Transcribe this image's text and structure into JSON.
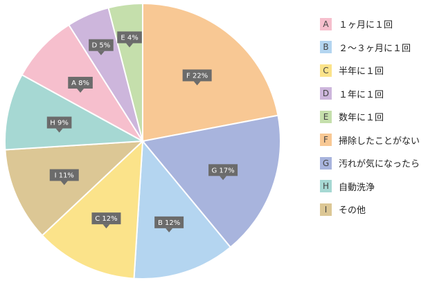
{
  "chart_data": {
    "type": "pie",
    "start": "top",
    "direction": "clockwise",
    "order": [
      "F",
      "G",
      "B",
      "C",
      "I",
      "H",
      "A",
      "D",
      "E"
    ],
    "slices": [
      {
        "key": "A",
        "name": "１ヶ月に１回",
        "value": 8,
        "label": "A 8%",
        "color": "#f6bfcd"
      },
      {
        "key": "B",
        "name": "２～３ヶ月に１回",
        "value": 12,
        "label": "B 12%",
        "color": "#b4d5f0"
      },
      {
        "key": "C",
        "name": "半年に１回",
        "value": 12,
        "label": "C 12%",
        "color": "#fbe38a"
      },
      {
        "key": "D",
        "name": "１年に１回",
        "value": 5,
        "label": "D 5%",
        "color": "#cdb6dc"
      },
      {
        "key": "E",
        "name": "数年に１回",
        "value": 4,
        "label": "E 4%",
        "color": "#c5dfac"
      },
      {
        "key": "F",
        "name": "掃除したことがない",
        "value": 22,
        "label": "F 22%",
        "color": "#f8c894"
      },
      {
        "key": "G",
        "name": "汚れが気になったら",
        "value": 17,
        "label": "G 17%",
        "color": "#a8b4dd"
      },
      {
        "key": "H",
        "name": "自動洗浄",
        "value": 9,
        "label": "H 9%",
        "color": "#a6d8d3"
      },
      {
        "key": "I",
        "name": "その他",
        "value": 11,
        "label": "I 11%",
        "color": "#dcc795"
      }
    ]
  }
}
